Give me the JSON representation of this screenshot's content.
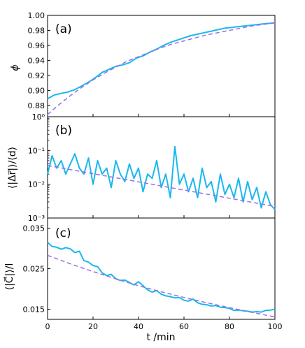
{
  "chart_data": [
    {
      "type": "line",
      "panel_label": "(a)",
      "ylabel": "ϕ",
      "yscale": "linear",
      "ylim": [
        0.865,
        1.0
      ],
      "yticks": [
        0.88,
        0.9,
        0.92,
        0.94,
        0.96,
        0.98,
        1.0
      ],
      "ytick_labels": [
        "0.88",
        "0.90",
        "0.92",
        "0.94",
        "0.96",
        "0.98",
        "1.00"
      ],
      "xlim": [
        0,
        100
      ],
      "series": [
        {
          "style": "solid",
          "color": "#1ab8ee",
          "x": [
            0,
            3,
            6,
            9,
            12,
            15,
            18,
            21,
            24,
            27,
            30,
            33,
            36,
            39,
            42,
            45,
            48,
            51,
            54,
            57,
            60,
            63,
            66,
            69,
            72,
            75,
            78,
            81,
            84,
            87,
            90,
            93,
            96,
            100
          ],
          "y": [
            0.889,
            0.894,
            0.896,
            0.898,
            0.901,
            0.906,
            0.911,
            0.917,
            0.924,
            0.928,
            0.932,
            0.934,
            0.937,
            0.943,
            0.946,
            0.951,
            0.955,
            0.96,
            0.964,
            0.967,
            0.97,
            0.973,
            0.975,
            0.977,
            0.979,
            0.981,
            0.983,
            0.984,
            0.985,
            0.986,
            0.987,
            0.988,
            0.989,
            0.99
          ]
        },
        {
          "style": "dashed",
          "color": "#9b6fe0",
          "x": [
            0,
            5,
            10,
            15,
            20,
            25,
            30,
            35,
            40,
            45,
            50,
            55,
            60,
            65,
            70,
            75,
            80,
            85,
            90,
            95,
            100
          ],
          "y": [
            0.868,
            0.881,
            0.893,
            0.904,
            0.914,
            0.923,
            0.931,
            0.939,
            0.945,
            0.951,
            0.957,
            0.962,
            0.966,
            0.97,
            0.974,
            0.977,
            0.98,
            0.983,
            0.986,
            0.988,
            0.99
          ]
        }
      ]
    },
    {
      "type": "line",
      "panel_label": "(b)",
      "ylabel": "⟨|Δr⃗|⟩/⟨d⟩",
      "yscale": "log",
      "ylim": [
        0.001,
        1
      ],
      "yticks": [
        0.001,
        0.01,
        0.1,
        1
      ],
      "ytick_labels": [
        "10⁻³",
        "10⁻²",
        "10⁻¹",
        "10⁰"
      ],
      "xlim": [
        0,
        100
      ],
      "series": [
        {
          "style": "solid",
          "color": "#1ab8ee",
          "x": [
            0,
            2,
            4,
            6,
            8,
            10,
            12,
            14,
            16,
            18,
            20,
            22,
            24,
            26,
            28,
            30,
            32,
            34,
            36,
            38,
            40,
            42,
            44,
            46,
            48,
            50,
            52,
            54,
            56,
            58,
            60,
            62,
            64,
            66,
            68,
            70,
            72,
            74,
            76,
            78,
            80,
            82,
            84,
            86,
            88,
            90,
            92,
            94,
            96,
            98,
            100
          ],
          "y": [
            0.02,
            0.07,
            0.03,
            0.05,
            0.02,
            0.04,
            0.08,
            0.03,
            0.02,
            0.06,
            0.01,
            0.05,
            0.02,
            0.03,
            0.008,
            0.05,
            0.02,
            0.012,
            0.04,
            0.015,
            0.03,
            0.006,
            0.02,
            0.015,
            0.05,
            0.008,
            0.02,
            0.004,
            0.13,
            0.01,
            0.02,
            0.006,
            0.015,
            0.004,
            0.03,
            0.008,
            0.012,
            0.003,
            0.02,
            0.005,
            0.01,
            0.004,
            0.015,
            0.003,
            0.012,
            0.0035,
            0.008,
            0.002,
            0.006,
            0.0025,
            0.0018
          ]
        },
        {
          "style": "dashed",
          "color": "#9b6fe0",
          "x": [
            0,
            100
          ],
          "y": [
            0.036,
            0.0022
          ]
        }
      ]
    },
    {
      "type": "line",
      "panel_label": "(c)",
      "ylabel": "⟨|C⃗|⟩/l",
      "yscale": "linear",
      "ylim": [
        0.0125,
        0.0375
      ],
      "yticks": [
        0.015,
        0.025,
        0.035
      ],
      "ytick_labels": [
        "0.015",
        "0.025",
        "0.035"
      ],
      "xlabel": "t /min",
      "xlim": [
        0,
        100
      ],
      "xticks": [
        0,
        20,
        40,
        60,
        80,
        100
      ],
      "xtick_labels": [
        "0",
        "20",
        "40",
        "60",
        "80",
        "100"
      ],
      "series": [
        {
          "style": "solid",
          "color": "#1ab8ee",
          "x": [
            0,
            2,
            4,
            6,
            8,
            10,
            12,
            14,
            16,
            18,
            20,
            22,
            24,
            26,
            28,
            30,
            32,
            34,
            36,
            38,
            40,
            42,
            44,
            46,
            48,
            50,
            52,
            54,
            56,
            58,
            60,
            62,
            64,
            66,
            68,
            70,
            72,
            74,
            76,
            78,
            80,
            82,
            84,
            86,
            88,
            90,
            92,
            94,
            96,
            98,
            100
          ],
          "y": [
            0.0315,
            0.0305,
            0.0303,
            0.0298,
            0.0302,
            0.0299,
            0.029,
            0.0293,
            0.027,
            0.0266,
            0.0258,
            0.0255,
            0.024,
            0.0233,
            0.0236,
            0.0225,
            0.0221,
            0.0222,
            0.0216,
            0.021,
            0.0218,
            0.0208,
            0.0198,
            0.0192,
            0.0196,
            0.0187,
            0.0183,
            0.0181,
            0.0178,
            0.0179,
            0.0172,
            0.017,
            0.0175,
            0.0166,
            0.0162,
            0.0161,
            0.0158,
            0.0159,
            0.0155,
            0.0154,
            0.0152,
            0.0147,
            0.0148,
            0.0146,
            0.0145,
            0.0143,
            0.0144,
            0.0143,
            0.0147,
            0.0148,
            0.015
          ]
        },
        {
          "style": "dashed",
          "color": "#9b6fe0",
          "x": [
            0,
            10,
            20,
            30,
            40,
            50,
            60,
            70,
            80,
            90,
            100
          ],
          "y": [
            0.0283,
            0.0262,
            0.0243,
            0.0225,
            0.0208,
            0.0193,
            0.0179,
            0.0166,
            0.0154,
            0.0142,
            0.0131
          ]
        }
      ]
    }
  ]
}
